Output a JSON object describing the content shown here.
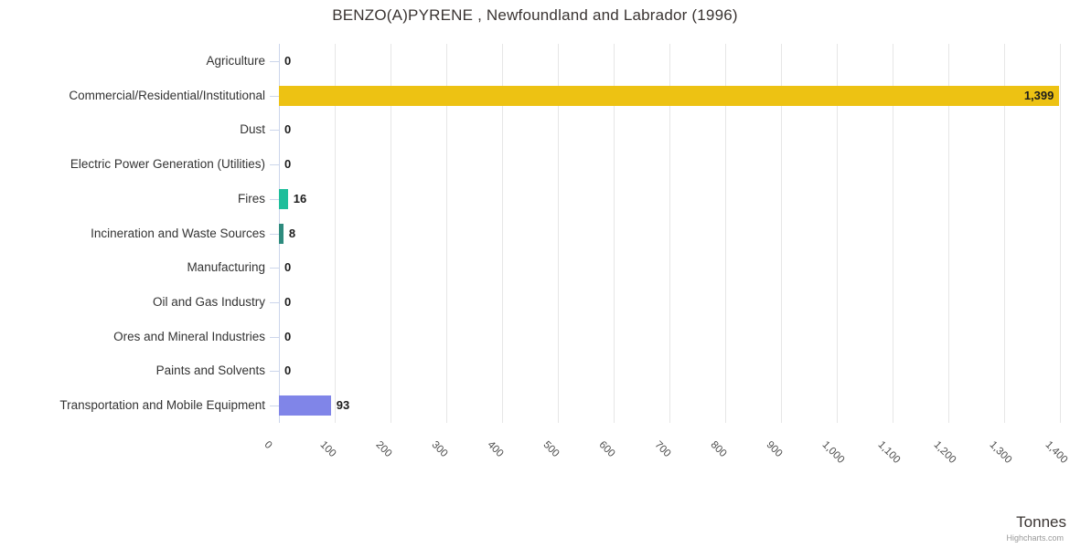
{
  "credit": "Highcharts.com",
  "chart_data": {
    "type": "bar",
    "orientation": "horizontal",
    "title": "BENZO(A)PYRENE , Newfoundland and Labrador (1996)",
    "xlabel": "Tonnes",
    "ylabel": "",
    "categories": [
      "Agriculture",
      "Commercial/Residential/Institutional",
      "Dust",
      "Electric Power Generation (Utilities)",
      "Fires",
      "Incineration and Waste Sources",
      "Manufacturing",
      "Oil and Gas Industry",
      "Ores and Mineral Industries",
      "Paints and Solvents",
      "Transportation and Mobile Equipment"
    ],
    "values": [
      0,
      1399,
      0,
      0,
      16,
      8,
      0,
      0,
      0,
      0,
      93
    ],
    "value_labels": [
      "0",
      "1,399",
      "0",
      "0",
      "16",
      "8",
      "0",
      "0",
      "0",
      "0",
      "93"
    ],
    "point_colors": [
      null,
      "#edc213",
      null,
      null,
      "#1ebe9b",
      "#2e8b7e",
      null,
      null,
      null,
      null,
      "#8085e8"
    ],
    "xlim": [
      0,
      1400
    ],
    "x_ticks": [
      0,
      100,
      200,
      300,
      400,
      500,
      600,
      700,
      800,
      900,
      1000,
      1100,
      1200,
      1300,
      1400
    ],
    "x_tick_labels": [
      "0",
      "100",
      "200",
      "300",
      "400",
      "500",
      "600",
      "700",
      "800",
      "900",
      "1,000",
      "1,100",
      "1,200",
      "1,300",
      "1,400"
    ],
    "grid": true,
    "legend": false,
    "colors": {
      "grid_line": "#e6e6e6",
      "axis_line": "#ccd6eb",
      "category_label": "#333333",
      "value_label": "#1c1c1c",
      "tick_label": "#4d4d4d",
      "title": "#3a3432",
      "credit": "#999999"
    }
  }
}
